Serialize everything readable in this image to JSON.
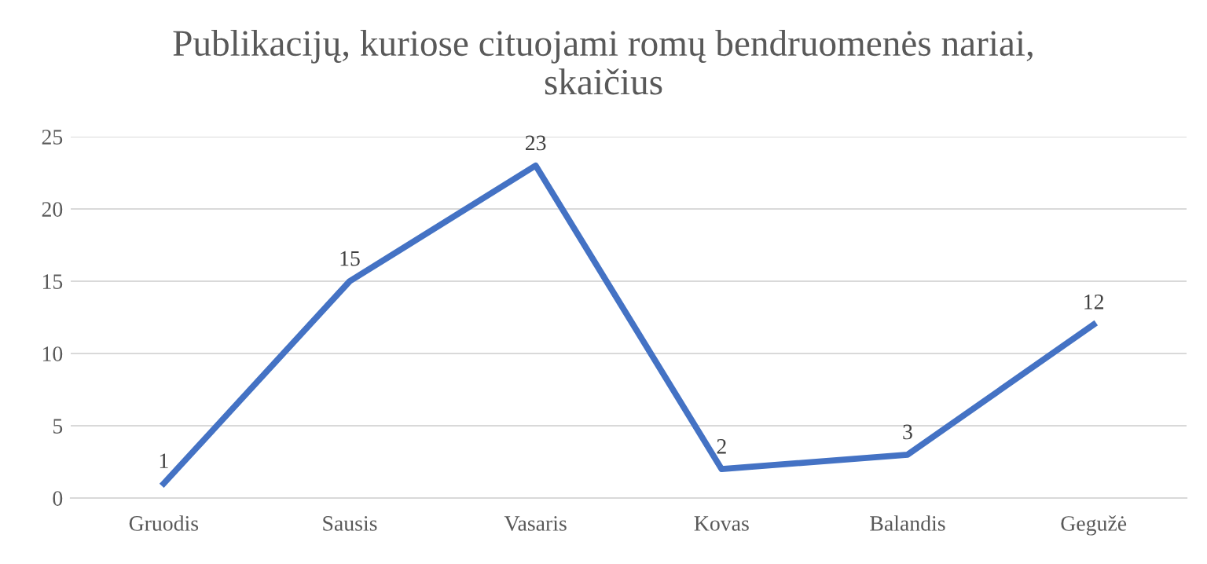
{
  "chart_data": {
    "type": "line",
    "title": "Publikacijų, kuriose cituojami romų bendruomenės nariai,\nskaičius",
    "categories": [
      "Gruodis",
      "Sausis",
      "Vasaris",
      "Kovas",
      "Balandis",
      "Gegužė"
    ],
    "values": [
      1,
      15,
      23,
      2,
      3,
      12
    ],
    "color": "#4472c4",
    "ylim": [
      0,
      25
    ],
    "yticks": [
      0,
      5,
      10,
      15,
      20,
      25
    ],
    "grid": "y",
    "data_labels": true,
    "marker": "none",
    "line_style": "solid"
  }
}
